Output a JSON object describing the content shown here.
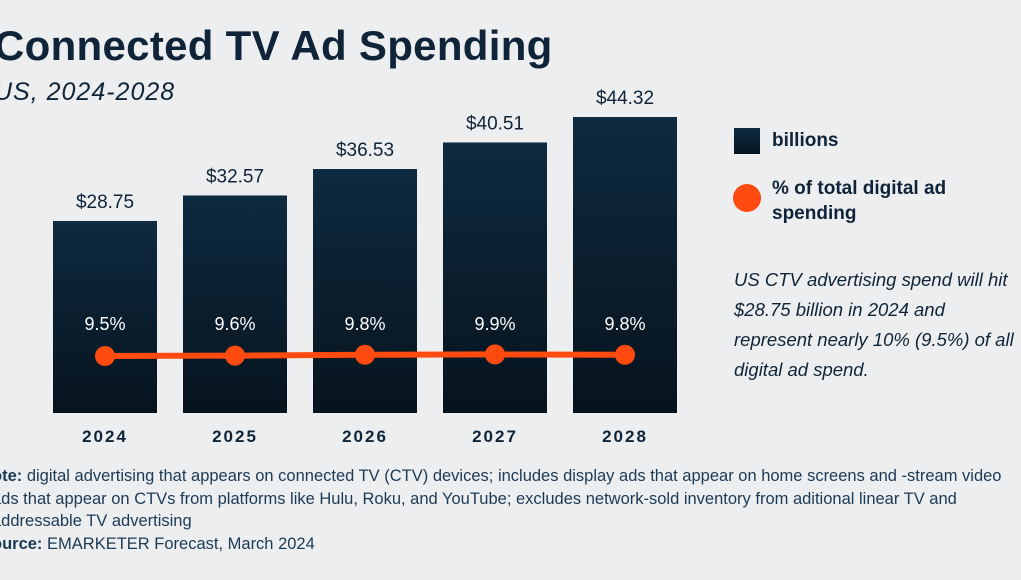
{
  "title": "Connected TV Ad Spending",
  "subtitle": "US, 2024-2028",
  "legend": {
    "bars": "billions",
    "dots": "% of total digital ad spending"
  },
  "callout": "US CTV advertising spend will hit $28.75 billion in 2024 and represent nearly 10% (9.5%) of all digital ad spend.",
  "note_label": "ote:",
  "note_text": " digital advertising that appears on connected TV (CTV) devices; includes display ads that appear on home screens and -stream video ads that appear on CTVs from platforms like Hulu, Roku, and YouTube; excludes network-sold inventory from aditional linear TV and addressable TV advertising",
  "source_label": "ource:",
  "source_text": " EMARKETER Forecast, March 2024",
  "colors": {
    "bar_top": "#0e2a40",
    "bar_bottom": "#07131d",
    "line": "#ff4a10",
    "text": "#0f2438"
  },
  "chart_data": {
    "type": "bar",
    "categories": [
      "2024",
      "2025",
      "2026",
      "2027",
      "2028"
    ],
    "series": [
      {
        "name": "billions",
        "type": "bar",
        "values": [
          28.75,
          32.57,
          36.53,
          40.51,
          44.32
        ],
        "labels": [
          "$28.75",
          "$32.57",
          "$36.53",
          "$40.51",
          "$44.32"
        ]
      },
      {
        "name": "% of total digital ad spending",
        "type": "line",
        "values": [
          9.5,
          9.6,
          9.8,
          9.9,
          9.8
        ],
        "labels": [
          "9.5%",
          "9.6%",
          "9.8%",
          "9.9%",
          "9.8%"
        ]
      }
    ],
    "ylim": [
      0,
      44.32
    ],
    "grid": false,
    "legend": "right"
  }
}
